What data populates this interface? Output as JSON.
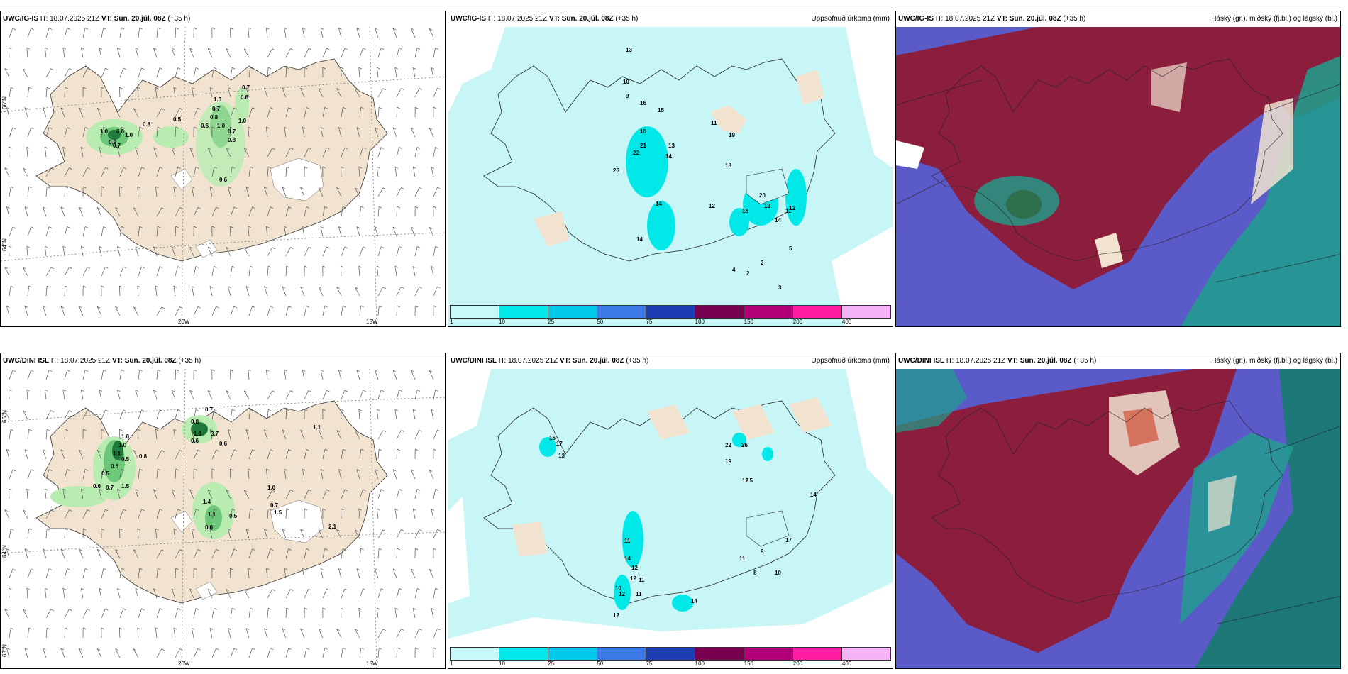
{
  "panels": [
    {
      "model": "UWC/IG-IS",
      "it": "IT: 18.07.2025 21Z",
      "vt_label": "VT:",
      "vt": "Sun. 20.júl. 08Z",
      "lead": "(+35 h)",
      "right": ""
    },
    {
      "model": "UWC/IG-IS",
      "it": "IT: 18.07.2025 21Z",
      "vt_label": "VT:",
      "vt": "Sun. 20.júl. 08Z",
      "lead": "(+35 h)",
      "right": "Uppsöfnuð úrkoma (mm)"
    },
    {
      "model": "UWC/IG-IS",
      "it": "IT: 18.07.2025 21Z",
      "vt_label": "VT:",
      "vt": "Sun. 20.júl. 08Z",
      "lead": "(+35 h)",
      "right": "Háský (gr.), miðský (fj.bl.) og lágský (bl.)"
    },
    {
      "model": "UWC/DINI ISL",
      "it": "IT: 18.07.2025 21Z",
      "vt_label": "VT:",
      "vt": "Sun. 20.júl. 08Z",
      "lead": "(+35 h)",
      "right": ""
    },
    {
      "model": "UWC/DINI ISL",
      "it": "IT: 18.07.2025 21Z",
      "vt_label": "VT:",
      "vt": "Sun. 20.júl. 08Z",
      "lead": "(+35 h)",
      "right": "Uppsöfnuð úrkoma (mm)"
    },
    {
      "model": "UWC/DINI ISL",
      "it": "IT: 18.07.2025 21Z",
      "vt_label": "VT:",
      "vt": "Sun. 20.júl. 08Z",
      "lead": "(+35 h)",
      "right": "Háský (gr.), miðský (fj.bl.) og lágský (bl.)"
    }
  ],
  "axis": {
    "lat_top": "66°N",
    "lat_mid": "64°N",
    "lat_low": "63°N",
    "lon_w20": "20W",
    "lon_w15": "15W"
  },
  "precip_legend": {
    "ticks": [
      "1",
      "10",
      "25",
      "50",
      "75",
      "100",
      "150",
      "200",
      "400"
    ],
    "colors": [
      "#c8f8f8",
      "#00e8e8",
      "#00c8e8",
      "#3c78e6",
      "#1e3cb4",
      "#780050",
      "#b40078",
      "#ff1ea0",
      "#f5b4f5"
    ]
  },
  "colors": {
    "land": "#f1e3d0",
    "sea": "#ffffff",
    "precip_light": "#c8f6f6",
    "precip_mid": "#00e8e8",
    "green_light": "#b8ecb0",
    "green_mid": "#6cc878",
    "green_dark": "#1e7a3a",
    "high_cloud": "#8a1e3c",
    "mid_cloud": "#5a5ac8",
    "low_cloud": "#1ea08c"
  },
  "top_wind_labels": [
    "0.7",
    "0.6",
    "1.0",
    "0.7",
    "0.8",
    "1.0",
    "0.6",
    "1.0",
    "0.7",
    "0.8",
    "0.5",
    "0.8",
    "0.6",
    "0.9",
    "1.0",
    "1.0",
    "0.7",
    "0.6"
  ],
  "bottom_wind_labels": [
    "0.7",
    "0.8",
    "1.3",
    "3.7",
    "0.6",
    "0.6",
    "1.0",
    "1.0",
    "1.1",
    "0.5",
    "0.8",
    "0.6",
    "0.5",
    "0.6",
    "0.7",
    "1.5",
    "1.4",
    "1.1",
    "0.5",
    "0.6",
    "1.0",
    "0.7",
    "1.5",
    "2.1",
    "1.1"
  ],
  "top_precip_labels": [
    "13",
    "10",
    "9",
    "16",
    "10",
    "15",
    "21",
    "13",
    "22",
    "14",
    "26",
    "11",
    "14",
    "14",
    "19",
    "18",
    "12",
    "20",
    "13",
    "14",
    "18",
    "11",
    "12",
    "5",
    "3",
    "2",
    "2",
    "4"
  ],
  "bottom_precip_labels": [
    "16",
    "17",
    "13",
    "22",
    "26",
    "19",
    "12",
    "14",
    "17",
    "11",
    "14",
    "12",
    "12",
    "11",
    "11",
    "14",
    "10",
    "12",
    "12",
    "15",
    "11",
    "9",
    "8",
    "10"
  ]
}
